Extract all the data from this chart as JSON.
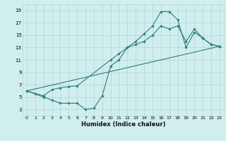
{
  "xlabel": "Humidex (Indice chaleur)",
  "ylabel": "",
  "bg_color": "#d0eeee",
  "grid_color": "#b8d8d8",
  "line_color": "#2e7d7d",
  "xlim": [
    -0.5,
    23.5
  ],
  "ylim": [
    2,
    20
  ],
  "xticks": [
    0,
    1,
    2,
    3,
    4,
    5,
    6,
    7,
    8,
    9,
    10,
    11,
    12,
    13,
    14,
    15,
    16,
    17,
    18,
    19,
    20,
    21,
    22,
    23
  ],
  "yticks": [
    3,
    5,
    7,
    9,
    11,
    13,
    15,
    17,
    19
  ],
  "line1_x": [
    0,
    1,
    2,
    3,
    4,
    5,
    6,
    7,
    8,
    9,
    10,
    11,
    12,
    13,
    14,
    15,
    16,
    17,
    18,
    19,
    20,
    21,
    22,
    23
  ],
  "line1_y": [
    6,
    5.5,
    5,
    4.5,
    4,
    4,
    4,
    3,
    3.2,
    5.2,
    10,
    11,
    13,
    14,
    15.2,
    16.5,
    18.8,
    18.8,
    17.5,
    13,
    15.5,
    14.5,
    13.5,
    13.2
  ],
  "line2_x": [
    0,
    2,
    3,
    4,
    5,
    6,
    10,
    11,
    12,
    13,
    14,
    15,
    16,
    17,
    18,
    19,
    20,
    21,
    22,
    23
  ],
  "line2_y": [
    6,
    5.2,
    6.2,
    6.5,
    6.7,
    6.8,
    11,
    12,
    13,
    13.5,
    14,
    15,
    16.5,
    16,
    16.5,
    14,
    16,
    14.5,
    13.5,
    13.2
  ],
  "line3_x": [
    0,
    23
  ],
  "line3_y": [
    6,
    13.2
  ]
}
